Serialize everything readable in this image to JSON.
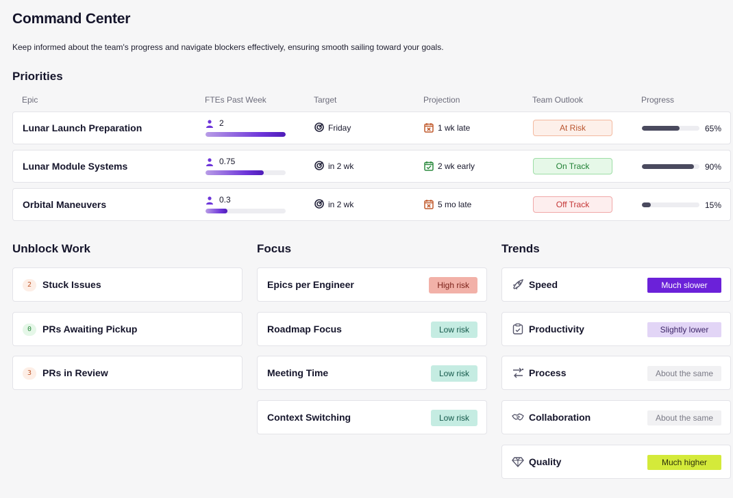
{
  "header": {
    "title": "Command Center",
    "subtitle": "Keep informed about the team's progress and navigate blockers effectively, ensuring smooth sailing toward your goals."
  },
  "priorities": {
    "title": "Priorities",
    "columns": [
      "Epic",
      "FTEs Past Week",
      "Target",
      "Projection",
      "Team Outlook",
      "Progress"
    ],
    "rows": [
      {
        "epic": "Lunar Launch Preparation",
        "fte": "2",
        "fte_fill_pct": 100,
        "target": "Friday",
        "projection": "1 wk late",
        "projection_status": "late",
        "outlook": "At Risk",
        "outlook_kind": "risk",
        "progress_pct": 65,
        "progress_label": "65%"
      },
      {
        "epic": "Lunar Module Systems",
        "fte": "0.75",
        "fte_fill_pct": 73,
        "target": "in 2 wk",
        "projection": "2 wk early",
        "projection_status": "early",
        "outlook": "On Track",
        "outlook_kind": "ontrack",
        "progress_pct": 90,
        "progress_label": "90%"
      },
      {
        "epic": "Orbital Maneuvers",
        "fte": "0.3",
        "fte_fill_pct": 27,
        "target": "in 2 wk",
        "projection": "5 mo late",
        "projection_status": "late",
        "outlook": "Off Track",
        "outlook_kind": "offtrack",
        "progress_pct": 15,
        "progress_label": "15%"
      }
    ]
  },
  "unblock": {
    "title": "Unblock Work",
    "items": [
      {
        "count": "2",
        "label": "Stuck Issues",
        "color": "orange"
      },
      {
        "count": "0",
        "label": "PRs Awaiting Pickup",
        "color": "green"
      },
      {
        "count": "3",
        "label": "PRs in Review",
        "color": "orange"
      }
    ]
  },
  "focus": {
    "title": "Focus",
    "items": [
      {
        "label": "Epics per Engineer",
        "risk": "High risk",
        "kind": "high"
      },
      {
        "label": "Roadmap Focus",
        "risk": "Low risk",
        "kind": "low"
      },
      {
        "label": "Meeting Time",
        "risk": "Low risk",
        "kind": "low"
      },
      {
        "label": "Context Switching",
        "risk": "Low risk",
        "kind": "low"
      }
    ]
  },
  "trends": {
    "title": "Trends",
    "items": [
      {
        "label": "Speed",
        "icon": "rocket-icon",
        "value": "Much slower",
        "bg": "#6b21d9",
        "fg": "#ffffff"
      },
      {
        "label": "Productivity",
        "icon": "clipboard-icon",
        "value": "Slightly lower",
        "bg": "#e2d5f6",
        "fg": "#3b2466"
      },
      {
        "label": "Process",
        "icon": "process-arrows-icon",
        "value": "About the same",
        "bg": "#f1f1f3",
        "fg": "#7a7a86"
      },
      {
        "label": "Collaboration",
        "icon": "handshake-icon",
        "value": "About the same",
        "bg": "#f1f1f3",
        "fg": "#7a7a86"
      },
      {
        "label": "Quality",
        "icon": "gem-icon",
        "value": "Much higher",
        "bg": "#d4ea3a",
        "fg": "#2c2f0a"
      }
    ]
  },
  "colors": {
    "accent": "#6d35d9",
    "late": "#c0592b",
    "early": "#2c8a3f"
  }
}
